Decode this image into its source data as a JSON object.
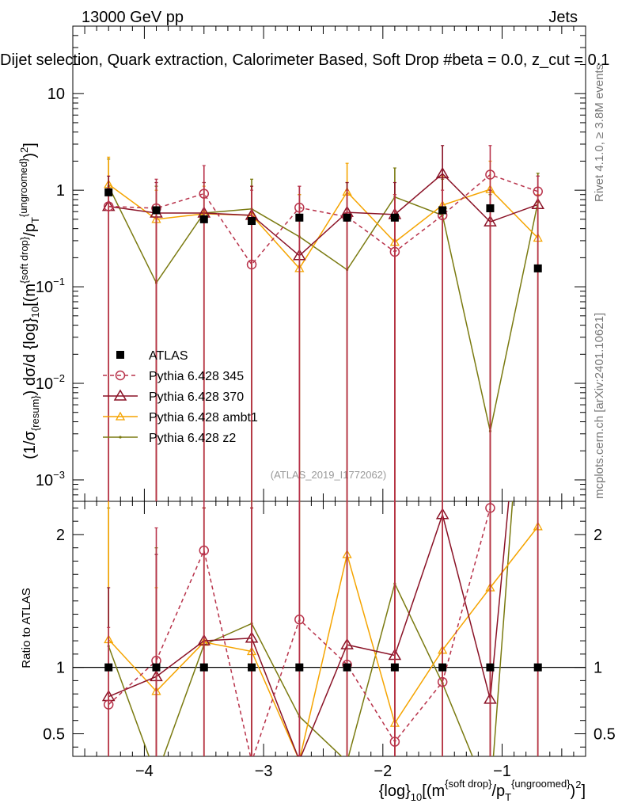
{
  "header": {
    "left": "13000 GeV pp",
    "right": "Jets",
    "title": "Dijet selection, Quark extraction, Calorimeter Based, Soft Drop #beta = 0.0, z_cut = 0.1",
    "right_side_1": "Rivet 4.1.0, ≥ 3.8M events",
    "right_side_2": "mcplots.cern.ch [arXiv:2401.10621]",
    "watermark": "(ATLAS_2019_I1772062)"
  },
  "colors": {
    "ATLAS": "#000000",
    "p345": "#b8324a",
    "p370": "#8a1226",
    "ambt1": "#f5a400",
    "z2": "#7a7a10"
  },
  "chart_data": {
    "type": "line",
    "x": [
      -4.3,
      -3.9,
      -3.5,
      -3.1,
      -2.7,
      -2.3,
      -1.9,
      -1.5,
      -1.1,
      -0.7
    ],
    "x_tick_labels": [
      "−4",
      "−3",
      "−2",
      "−1"
    ],
    "x_ticks": [
      -4,
      -3,
      -2,
      -1
    ],
    "xlim": [
      -4.6,
      -0.3
    ],
    "xlabel": "{log}10[(m^{soft drop}/p_T^{ungroomed})^2]",
    "top": {
      "ylabel": "(1/σ_resum) dσ/d {log}10[(m^{soft drop}/p_T^{ungroomed})^2]",
      "yscale": "log",
      "ylim": [
        0.0006,
        50
      ],
      "y_tick_labels": [
        {
          "v": 0.001,
          "base": "10",
          "exp": "−3"
        },
        {
          "v": 0.01,
          "base": "10",
          "exp": "−2"
        },
        {
          "v": 0.1,
          "base": "10",
          "exp": "−1"
        },
        {
          "v": 1,
          "base": "1",
          "exp": ""
        },
        {
          "v": 10,
          "base": "10",
          "exp": ""
        }
      ]
    },
    "ratio": {
      "ylabel": "Ratio to ATLAS",
      "ylim": [
        0.33,
        2.25
      ],
      "y_tick_labels": [
        "0.5",
        "1",
        "2"
      ],
      "y_ticks": [
        0.5,
        1,
        2
      ]
    },
    "series": [
      {
        "key": "ATLAS",
        "name": "ATLAS",
        "values": [
          0.95,
          0.62,
          0.5,
          0.48,
          0.52,
          0.52,
          0.52,
          0.62,
          0.65,
          0.155
        ],
        "ratio": [
          1,
          1,
          1,
          1,
          1,
          1,
          1,
          1,
          1,
          1
        ]
      },
      {
        "key": "p345",
        "name": "Pythia 6.428 345",
        "values": [
          0.68,
          0.65,
          0.92,
          0.17,
          0.66,
          0.53,
          0.23,
          0.55,
          1.45,
          0.97
        ],
        "ratio": [
          0.72,
          1.05,
          1.88,
          0.29,
          1.36,
          1.02,
          0.44,
          0.89,
          2.2,
          6.26
        ],
        "err_hi": [
          1.05,
          1.3,
          1.8,
          1.0,
          1.1,
          1.0,
          0.9,
          1.0,
          2.9,
          1.4
        ],
        "ratio_err_hi": [
          1.3,
          2.05,
          2.3,
          2.3,
          2.3,
          2.3,
          2.3,
          2.3,
          2.3,
          2.3
        ]
      },
      {
        "key": "p370",
        "name": "Pythia 6.428 370",
        "values": [
          0.68,
          0.58,
          0.58,
          0.55,
          0.21,
          0.59,
          0.56,
          1.48,
          0.47,
          0.71
        ],
        "ratio": [
          0.78,
          0.93,
          1.2,
          1.22,
          0.3,
          1.17,
          1.09,
          2.15,
          0.76,
          4.6
        ],
        "err_hi": [
          1.4,
          1.2,
          1.2,
          1.1,
          1.1,
          1.2,
          1.2,
          2.9,
          1.0,
          1.4
        ],
        "ratio_err_hi": [
          1.6,
          1.85,
          2.2,
          2.2,
          2.3,
          2.3,
          2.3,
          2.3,
          2.3,
          2.3
        ]
      },
      {
        "key": "ambt1",
        "name": "Pythia 6.428 ambt1",
        "values": [
          1.15,
          0.5,
          0.57,
          0.55,
          0.155,
          0.96,
          0.29,
          0.7,
          1.02,
          0.32
        ],
        "ratio": [
          1.21,
          0.82,
          1.19,
          1.12,
          0.3,
          1.85,
          0.58,
          1.13,
          1.6,
          2.06
        ],
        "err_hi": [
          2.2,
          1.0,
          1.1,
          1.1,
          0.9,
          1.9,
          0.9,
          1.4,
          2.0,
          0.9
        ],
        "ratio_err_hi": [
          2.3,
          1.6,
          2.2,
          2.2,
          2.3,
          2.3,
          2.3,
          2.3,
          2.3,
          2.3
        ]
      },
      {
        "key": "z2",
        "name": "Pythia 6.428 z2",
        "values": [
          1.1,
          0.11,
          0.58,
          0.64,
          0.33,
          0.15,
          0.85,
          0.55,
          0.0032,
          0.75
        ],
        "ratio": [
          1.16,
          0.18,
          1.17,
          1.33,
          0.63,
          0.29,
          1.63,
          0.88,
          0.005,
          4.8
        ],
        "err_hi": [
          2.1,
          1.1,
          1.2,
          1.3,
          0.9,
          1.2,
          1.7,
          1.3,
          0.9,
          1.5
        ],
        "ratio_err_hi": [
          2.2,
          1.9,
          2.2,
          2.25,
          2.3,
          2.3,
          2.3,
          2.3,
          2.3,
          2.3
        ]
      }
    ],
    "legend": {
      "position": "center-left"
    }
  }
}
